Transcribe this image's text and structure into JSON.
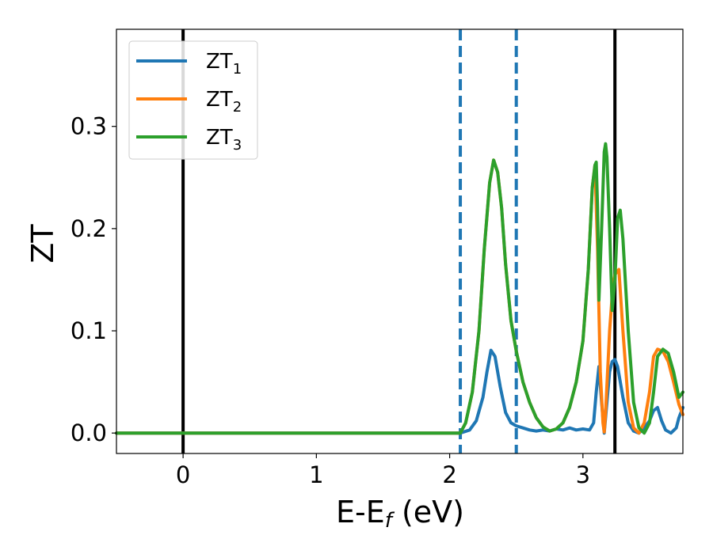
{
  "chart_data": {
    "type": "line",
    "xlabel": "E-E",
    "xlabel_sub": "f",
    "xlabel_unit": " (eV)",
    "ylabel": "ZT",
    "xlim": [
      -0.5,
      3.75
    ],
    "ylim": [
      -0.02,
      0.395
    ],
    "x_ticks": [
      0,
      1,
      2,
      3
    ],
    "x_tick_labels": [
      "0",
      "1",
      "2",
      "3"
    ],
    "y_ticks": [
      0.0,
      0.1,
      0.2,
      0.3
    ],
    "y_tick_labels": [
      "0.0",
      "0.1",
      "0.2",
      "0.3"
    ],
    "grid": false,
    "legend_position": "top-left",
    "vertical_lines": [
      {
        "x": 0.0,
        "style": "solid",
        "color": "#000000"
      },
      {
        "x": 2.08,
        "style": "dashed",
        "color": "#1f77b4"
      },
      {
        "x": 2.5,
        "style": "dashed",
        "color": "#1f77b4"
      },
      {
        "x": 3.24,
        "style": "solid",
        "color": "#000000"
      }
    ],
    "series": [
      {
        "name": "ZT",
        "sub": "1",
        "color": "#1f77b4",
        "x": [
          -0.5,
          2.0,
          2.08,
          2.15,
          2.2,
          2.25,
          2.28,
          2.31,
          2.34,
          2.38,
          2.42,
          2.46,
          2.5,
          2.55,
          2.6,
          2.65,
          2.7,
          2.75,
          2.8,
          2.85,
          2.9,
          2.95,
          3.0,
          3.05,
          3.08,
          3.1,
          3.12,
          3.14,
          3.16,
          3.18,
          3.2,
          3.22,
          3.24,
          3.26,
          3.3,
          3.34,
          3.38,
          3.42,
          3.46,
          3.5,
          3.53,
          3.56,
          3.59,
          3.62,
          3.66,
          3.7,
          3.72,
          3.75
        ],
        "y": [
          0.0,
          0.0,
          0.0,
          0.003,
          0.012,
          0.035,
          0.06,
          0.081,
          0.075,
          0.045,
          0.02,
          0.01,
          0.007,
          0.005,
          0.003,
          0.002,
          0.003,
          0.002,
          0.004,
          0.003,
          0.005,
          0.003,
          0.004,
          0.003,
          0.01,
          0.04,
          0.065,
          0.03,
          0.0,
          0.03,
          0.06,
          0.07,
          0.072,
          0.065,
          0.035,
          0.01,
          0.002,
          0.0,
          0.005,
          0.012,
          0.022,
          0.025,
          0.012,
          0.003,
          0.0,
          0.005,
          0.015,
          0.025
        ]
      },
      {
        "name": "ZT",
        "sub": "2",
        "color": "#ff7f0e",
        "x": [
          -0.5,
          2.0,
          2.08,
          2.12,
          2.17,
          2.22,
          2.26,
          2.3,
          2.33,
          2.36,
          2.39,
          2.42,
          2.46,
          2.5,
          2.55,
          2.6,
          2.65,
          2.7,
          2.75,
          2.8,
          2.85,
          2.9,
          2.95,
          3.0,
          3.04,
          3.07,
          3.09,
          3.11,
          3.13,
          3.15,
          3.16,
          3.17,
          3.2,
          3.22,
          3.24,
          3.27,
          3.3,
          3.34,
          3.38,
          3.42,
          3.46,
          3.5,
          3.53,
          3.56,
          3.6,
          3.64,
          3.68,
          3.72,
          3.75
        ],
        "y": [
          0.0,
          0.0,
          0.0,
          0.01,
          0.04,
          0.1,
          0.18,
          0.245,
          0.267,
          0.255,
          0.22,
          0.165,
          0.11,
          0.08,
          0.05,
          0.03,
          0.015,
          0.006,
          0.002,
          0.004,
          0.01,
          0.025,
          0.05,
          0.09,
          0.16,
          0.24,
          0.262,
          0.18,
          0.06,
          0.01,
          0.001,
          0.02,
          0.1,
          0.135,
          0.155,
          0.16,
          0.1,
          0.03,
          0.005,
          0.0,
          0.01,
          0.04,
          0.075,
          0.082,
          0.08,
          0.07,
          0.05,
          0.028,
          0.018
        ]
      },
      {
        "name": "ZT",
        "sub": "3",
        "color": "#2ca02c",
        "x": [
          -0.5,
          2.0,
          2.08,
          2.12,
          2.17,
          2.22,
          2.26,
          2.3,
          2.33,
          2.36,
          2.39,
          2.42,
          2.46,
          2.5,
          2.55,
          2.6,
          2.65,
          2.7,
          2.75,
          2.8,
          2.85,
          2.9,
          2.95,
          3.0,
          3.04,
          3.07,
          3.09,
          3.1,
          3.11,
          3.12,
          3.14,
          3.16,
          3.17,
          3.18,
          3.2,
          3.22,
          3.24,
          3.26,
          3.28,
          3.3,
          3.34,
          3.38,
          3.42,
          3.46,
          3.5,
          3.53,
          3.56,
          3.6,
          3.64,
          3.68,
          3.72,
          3.75
        ],
        "y": [
          0.0,
          0.0,
          0.0,
          0.01,
          0.04,
          0.1,
          0.18,
          0.245,
          0.267,
          0.255,
          0.22,
          0.165,
          0.11,
          0.08,
          0.05,
          0.03,
          0.015,
          0.006,
          0.002,
          0.004,
          0.01,
          0.025,
          0.05,
          0.09,
          0.16,
          0.24,
          0.262,
          0.265,
          0.22,
          0.13,
          0.2,
          0.275,
          0.283,
          0.27,
          0.2,
          0.12,
          0.15,
          0.21,
          0.218,
          0.19,
          0.1,
          0.03,
          0.005,
          0.0,
          0.01,
          0.04,
          0.075,
          0.082,
          0.078,
          0.06,
          0.035,
          0.04
        ]
      }
    ]
  }
}
